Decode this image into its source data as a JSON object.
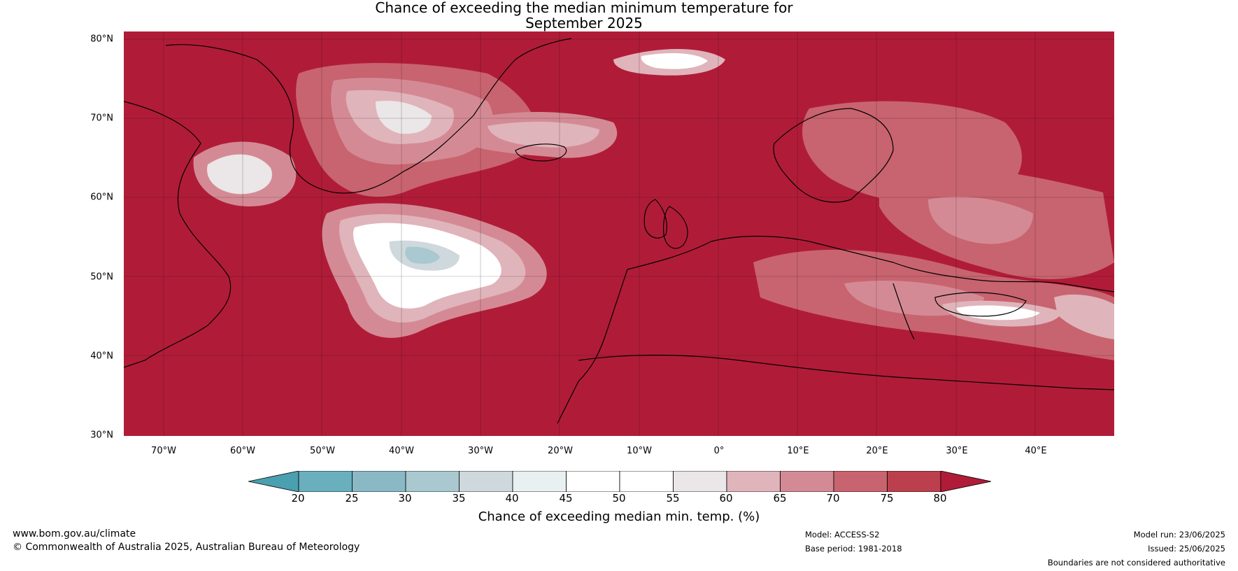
{
  "map": {
    "title_line1": "Chance of exceeding the median minimum temperature for",
    "title_line2": "September 2025",
    "lat_labels": [
      "80°N",
      "70°N",
      "60°N",
      "50°N",
      "40°N",
      "30°N"
    ],
    "lon_labels": [
      "70°W",
      "60°W",
      "50°W",
      "40°W",
      "30°W",
      "20°W",
      "10°W",
      "0°",
      "10°E",
      "20°E",
      "30°E",
      "40°E"
    ],
    "background_color": "#b01c38"
  },
  "colorbar": {
    "ticks": [
      "20",
      "25",
      "30",
      "35",
      "40",
      "45",
      "50",
      "55",
      "60",
      "65",
      "70",
      "75",
      "80"
    ],
    "colors": [
      "#4a9fb0",
      "#6aafbd",
      "#8ab9c5",
      "#a9c8cf",
      "#cfd8dc",
      "#e9f0f1",
      "#ffffff",
      "#ffffff",
      "#ebe6e7",
      "#e0b4bb",
      "#d48a95",
      "#c8646f",
      "#bc3f4e",
      "#b01c38"
    ],
    "label": "Chance of exceeding median min. temp. (%)"
  },
  "footer": {
    "website": "www.bom.gov.au/climate",
    "copyright": "© Commonwealth of Australia 2025, Australian Bureau of Meteorology",
    "model": "Model: ACCESS-S2",
    "base_period": "Base period: 1981-2018",
    "model_run": "Model run: 23/06/2025",
    "issued": "Issued: 25/06/2025",
    "disclaimer": "Boundaries are not considered authoritative"
  }
}
